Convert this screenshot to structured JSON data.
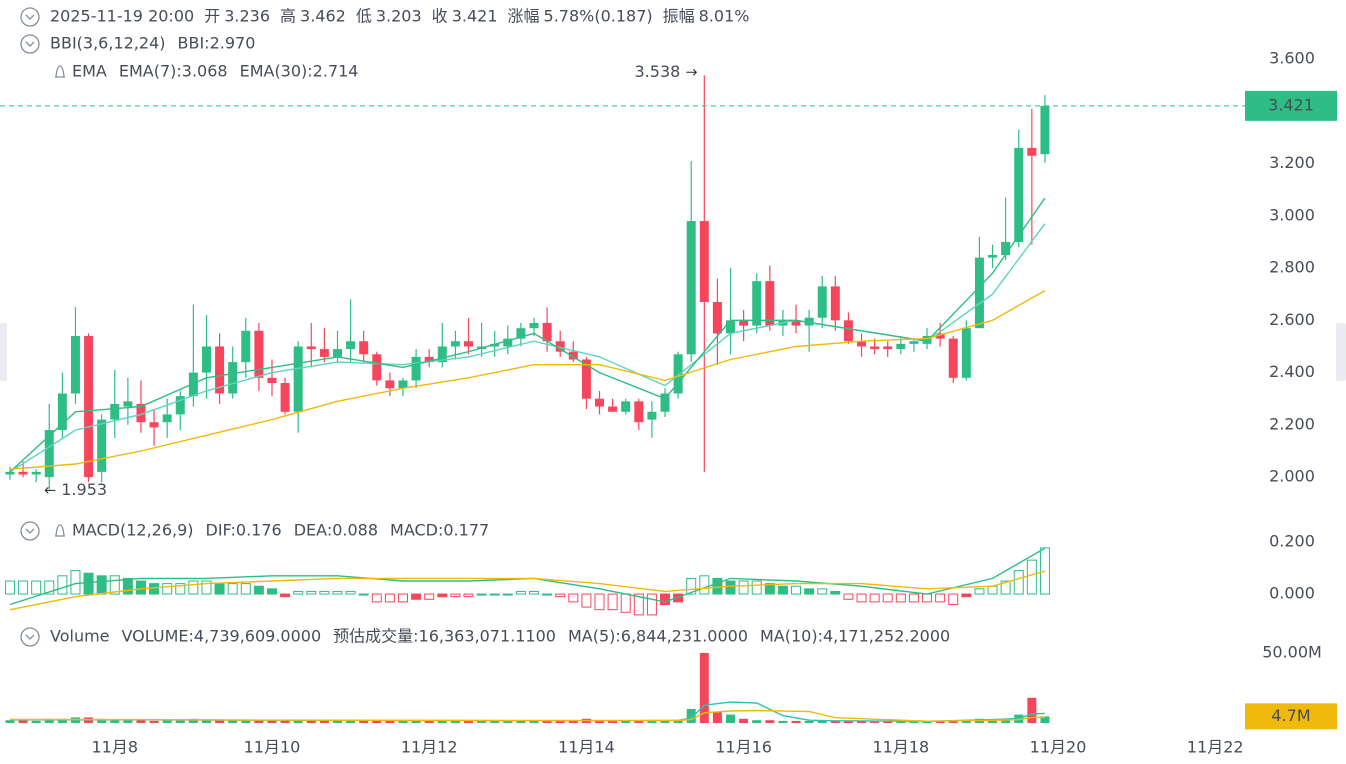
{
  "header": {
    "datetime": "2025-11-19 20:00",
    "stats": [
      {
        "label": "开",
        "value": "3.236"
      },
      {
        "label": "高",
        "value": "3.462"
      },
      {
        "label": "低",
        "value": "3.203"
      },
      {
        "label": "收",
        "value": "3.421"
      },
      {
        "label": "涨幅",
        "value": "5.78%(0.187)"
      },
      {
        "label": "振幅",
        "value": "8.01%"
      }
    ]
  },
  "chart_data": [
    {
      "type": "candlestick",
      "colors": {
        "up": "#2ebd85",
        "down": "#f6465d"
      },
      "xlim": [
        -0.76,
        94.27
      ],
      "ylim": [
        1.874,
        3.719
      ],
      "yticks": [
        {
          "value": 2,
          "label": "2.000"
        },
        {
          "value": 2.2,
          "label": "2.200"
        },
        {
          "value": 2.4,
          "label": "2.400"
        },
        {
          "value": 2.6,
          "label": "2.600"
        },
        {
          "value": 2.8,
          "label": "2.800"
        },
        {
          "value": 3,
          "label": "3.000"
        },
        {
          "value": 3.2,
          "label": "3.200"
        },
        {
          "value": 3.6,
          "label": "3.600"
        }
      ],
      "candles": [
        [
          2.01,
          2.04,
          1.99,
          2.02
        ],
        [
          2.02,
          2.06,
          2.0,
          2.01
        ],
        [
          2.01,
          2.03,
          1.98,
          2.02
        ],
        [
          2.0,
          2.28,
          1.953,
          2.18
        ],
        [
          2.18,
          2.4,
          2.15,
          2.32
        ],
        [
          2.32,
          2.65,
          2.28,
          2.54
        ],
        [
          2.54,
          2.55,
          1.98,
          2.0
        ],
        [
          2.02,
          2.24,
          1.98,
          2.22
        ],
        [
          2.22,
          2.41,
          2.15,
          2.28
        ],
        [
          2.27,
          2.38,
          2.2,
          2.29
        ],
        [
          2.28,
          2.37,
          2.17,
          2.21
        ],
        [
          2.21,
          2.26,
          2.12,
          2.19
        ],
        [
          2.21,
          2.3,
          2.15,
          2.24
        ],
        [
          2.24,
          2.33,
          2.18,
          2.31
        ],
        [
          2.31,
          2.66,
          2.27,
          2.4
        ],
        [
          2.4,
          2.62,
          2.3,
          2.5
        ],
        [
          2.5,
          2.55,
          2.28,
          2.32
        ],
        [
          2.32,
          2.5,
          2.3,
          2.44
        ],
        [
          2.44,
          2.61,
          2.38,
          2.56
        ],
        [
          2.56,
          2.59,
          2.33,
          2.38
        ],
        [
          2.38,
          2.45,
          2.31,
          2.36
        ],
        [
          2.36,
          2.38,
          2.24,
          2.25
        ],
        [
          2.25,
          2.52,
          2.17,
          2.5
        ],
        [
          2.5,
          2.59,
          2.42,
          2.49
        ],
        [
          2.49,
          2.57,
          2.44,
          2.46
        ],
        [
          2.46,
          2.56,
          2.44,
          2.49
        ],
        [
          2.49,
          2.68,
          2.44,
          2.52
        ],
        [
          2.52,
          2.56,
          2.44,
          2.47
        ],
        [
          2.47,
          2.48,
          2.35,
          2.37
        ],
        [
          2.37,
          2.4,
          2.31,
          2.34
        ],
        [
          2.34,
          2.38,
          2.31,
          2.37
        ],
        [
          2.37,
          2.49,
          2.34,
          2.46
        ],
        [
          2.46,
          2.49,
          2.42,
          2.44
        ],
        [
          2.44,
          2.59,
          2.42,
          2.5
        ],
        [
          2.5,
          2.56,
          2.45,
          2.52
        ],
        [
          2.52,
          2.61,
          2.47,
          2.5
        ],
        [
          2.49,
          2.59,
          2.46,
          2.5
        ],
        [
          2.5,
          2.56,
          2.46,
          2.51
        ],
        [
          2.5,
          2.58,
          2.47,
          2.53
        ],
        [
          2.53,
          2.59,
          2.5,
          2.57
        ],
        [
          2.57,
          2.61,
          2.54,
          2.59
        ],
        [
          2.59,
          2.65,
          2.48,
          2.52
        ],
        [
          2.52,
          2.56,
          2.46,
          2.48
        ],
        [
          2.48,
          2.52,
          2.44,
          2.45
        ],
        [
          2.45,
          2.46,
          2.26,
          2.3
        ],
        [
          2.3,
          2.33,
          2.24,
          2.27
        ],
        [
          2.27,
          2.3,
          2.25,
          2.25
        ],
        [
          2.25,
          2.3,
          2.24,
          2.29
        ],
        [
          2.29,
          2.3,
          2.18,
          2.21
        ],
        [
          2.22,
          2.29,
          2.15,
          2.25
        ],
        [
          2.25,
          2.34,
          2.23,
          2.32
        ],
        [
          2.32,
          2.48,
          2.3,
          2.47
        ],
        [
          2.47,
          3.21,
          2.44,
          2.98
        ],
        [
          2.98,
          3.538,
          2.02,
          2.67
        ],
        [
          2.67,
          2.76,
          2.43,
          2.55
        ],
        [
          2.55,
          2.8,
          2.47,
          2.6
        ],
        [
          2.6,
          2.64,
          2.52,
          2.58
        ],
        [
          2.58,
          2.78,
          2.55,
          2.75
        ],
        [
          2.75,
          2.81,
          2.56,
          2.58
        ],
        [
          2.58,
          2.64,
          2.54,
          2.6
        ],
        [
          2.6,
          2.66,
          2.55,
          2.58
        ],
        [
          2.58,
          2.64,
          2.48,
          2.61
        ],
        [
          2.61,
          2.77,
          2.57,
          2.73
        ],
        [
          2.73,
          2.77,
          2.56,
          2.6
        ],
        [
          2.6,
          2.63,
          2.51,
          2.52
        ],
        [
          2.52,
          2.55,
          2.46,
          2.5
        ],
        [
          2.5,
          2.53,
          2.47,
          2.49
        ],
        [
          2.5,
          2.52,
          2.46,
          2.49
        ],
        [
          2.49,
          2.54,
          2.47,
          2.51
        ],
        [
          2.51,
          2.53,
          2.48,
          2.52
        ],
        [
          2.51,
          2.57,
          2.49,
          2.54
        ],
        [
          2.55,
          2.59,
          2.5,
          2.53
        ],
        [
          2.53,
          2.54,
          2.36,
          2.38
        ],
        [
          2.38,
          2.6,
          2.37,
          2.57
        ],
        [
          2.57,
          2.92,
          2.57,
          2.84
        ],
        [
          2.84,
          2.89,
          2.8,
          2.85
        ],
        [
          2.85,
          3.07,
          2.83,
          2.9
        ],
        [
          2.9,
          3.33,
          2.88,
          3.26
        ],
        [
          3.26,
          3.41,
          2.89,
          3.23
        ],
        [
          3.236,
          3.462,
          3.203,
          3.421
        ]
      ],
      "lines": [
        {
          "color": "#5fd3c0",
          "x": [
            0,
            5,
            10,
            15,
            20,
            25,
            30,
            35,
            40,
            45,
            50,
            55,
            60,
            65,
            70,
            75,
            79
          ],
          "values": [
            2.02,
            2.18,
            2.24,
            2.33,
            2.4,
            2.44,
            2.43,
            2.46,
            2.52,
            2.46,
            2.35,
            2.55,
            2.6,
            2.56,
            2.52,
            2.7,
            2.97
          ]
        },
        {
          "color": "#2ebd85",
          "x": [
            0,
            5,
            10,
            15,
            20,
            25,
            30,
            35,
            40,
            45,
            50,
            55,
            60,
            65,
            70,
            75,
            79
          ],
          "values": [
            2.02,
            2.25,
            2.27,
            2.38,
            2.42,
            2.46,
            2.42,
            2.48,
            2.55,
            2.4,
            2.3,
            2.6,
            2.6,
            2.56,
            2.52,
            2.78,
            3.068
          ]
        },
        {
          "color": "#f0b90b",
          "x": [
            0,
            5,
            10,
            15,
            20,
            25,
            30,
            35,
            40,
            45,
            50,
            55,
            60,
            65,
            70,
            75,
            79
          ],
          "values": [
            2.03,
            2.05,
            2.1,
            2.16,
            2.22,
            2.29,
            2.34,
            2.38,
            2.43,
            2.43,
            2.37,
            2.45,
            2.5,
            2.52,
            2.53,
            2.6,
            2.714
          ]
        }
      ],
      "legend_rows": [
        [
          {
            "text": "BBI(3,6,12,24)",
            "color": "#707a8a"
          },
          {
            "text": "BBI:2.970",
            "color": "#2ebd85"
          }
        ],
        [
          {
            "text": "EMA",
            "color": "#707a8a"
          },
          {
            "text": "EMA(7):3.068",
            "color": "#2ebd85"
          },
          {
            "text": "EMA(30):2.714",
            "color": "#f0b90b"
          }
        ]
      ]
    },
    {
      "type": "macd",
      "colors": {
        "up": "#2ebd85",
        "down": "#f6465d"
      },
      "xlim": [
        -0.76,
        94.27
      ],
      "ylim": [
        -0.088,
        0.215
      ],
      "yticks": [
        {
          "value": 0,
          "label": "0.000"
        },
        {
          "value": 0.2,
          "label": "0.200"
        }
      ],
      "values": [
        0.05,
        0.05,
        0.05,
        0.05,
        0.07,
        0.09,
        0.08,
        0.07,
        0.07,
        0.06,
        0.05,
        0.04,
        0.04,
        0.04,
        0.05,
        0.05,
        0.04,
        0.04,
        0.04,
        0.03,
        0.02,
        -0.01,
        0.01,
        0.01,
        0.01,
        0.01,
        0.01,
        0.0,
        -0.03,
        -0.03,
        -0.03,
        -0.02,
        -0.02,
        -0.01,
        -0.01,
        -0.01,
        0.0,
        0.0,
        0.0,
        0.01,
        0.01,
        0.0,
        -0.01,
        -0.03,
        -0.05,
        -0.06,
        -0.06,
        -0.07,
        -0.08,
        -0.08,
        -0.04,
        -0.03,
        0.06,
        0.07,
        0.06,
        0.05,
        0.05,
        0.05,
        0.04,
        0.03,
        0.03,
        0.02,
        0.02,
        0.01,
        -0.02,
        -0.03,
        -0.03,
        -0.03,
        -0.03,
        -0.03,
        -0.03,
        -0.03,
        -0.04,
        -0.01,
        0.02,
        0.03,
        0.05,
        0.09,
        0.13,
        0.177
      ],
      "lines": [
        {
          "color": "#2ebd85",
          "x": [
            0,
            5,
            10,
            15,
            20,
            25,
            30,
            35,
            40,
            45,
            50,
            55,
            60,
            65,
            70,
            75,
            79
          ],
          "values": [
            -0.04,
            0.04,
            0.06,
            0.06,
            0.07,
            0.07,
            0.05,
            0.05,
            0.06,
            0.02,
            -0.03,
            0.06,
            0.05,
            0.03,
            0.0,
            0.06,
            0.176
          ]
        },
        {
          "color": "#f0b90b",
          "x": [
            0,
            5,
            10,
            15,
            20,
            25,
            30,
            35,
            40,
            45,
            50,
            55,
            60,
            65,
            70,
            75,
            79
          ],
          "values": [
            -0.06,
            -0.01,
            0.02,
            0.04,
            0.05,
            0.06,
            0.06,
            0.06,
            0.06,
            0.04,
            0.01,
            0.03,
            0.04,
            0.04,
            0.02,
            0.03,
            0.088
          ]
        }
      ],
      "legend_rows": [
        [
          {
            "text": "MACD(12,26,9)",
            "color": "#707a8a"
          },
          {
            "text": "DIF:0.176",
            "color": "#2ebd85"
          },
          {
            "text": "DEA:0.088",
            "color": "#f0b90b"
          },
          {
            "text": "MACD:0.177",
            "color": "#2ebd85"
          }
        ]
      ]
    },
    {
      "type": "volume",
      "colors": {
        "up": "#2ebd85",
        "down": "#f6465d"
      },
      "xlim": [
        -0.76,
        94.27
      ],
      "ylim": [
        0,
        52.14
      ],
      "yticks": [
        {
          "value": 50,
          "label": "50.00M"
        }
      ],
      "xticks": [
        {
          "value": 8,
          "label": "11月8"
        },
        {
          "value": 20,
          "label": "11月10"
        },
        {
          "value": 32,
          "label": "11月12"
        },
        {
          "value": 44,
          "label": "11月14"
        },
        {
          "value": 56,
          "label": "11月16"
        },
        {
          "value": 68,
          "label": "11月18"
        },
        {
          "value": 80,
          "label": "11月20"
        },
        {
          "value": 92,
          "label": "11月22"
        }
      ],
      "current_tag": {
        "value": 4.739609,
        "label": "4.7M"
      },
      "values": [
        2,
        2,
        1.5,
        3,
        3,
        4,
        4,
        3,
        2.5,
        2,
        2,
        1.5,
        2,
        2,
        3,
        2,
        2,
        2,
        2,
        2,
        2,
        2,
        2,
        2,
        2,
        1.5,
        1.5,
        2,
        2,
        1.5,
        1.5,
        1.5,
        1.5,
        2,
        2,
        2,
        1.5,
        1.5,
        1.5,
        2,
        2,
        2,
        1.5,
        2,
        3,
        2,
        1.5,
        1.5,
        2,
        1.5,
        2,
        2,
        10,
        50,
        8,
        6,
        3,
        2,
        2,
        1.5,
        1.5,
        1.5,
        2,
        1.5,
        1.5,
        1.5,
        1,
        1,
        1,
        1,
        1,
        1,
        2,
        2,
        3,
        2,
        3,
        6,
        18,
        4.739609
      ],
      "lines": [
        {
          "color": "#2bc4b0",
          "x": [
            0,
            10,
            20,
            30,
            40,
            50,
            51,
            52,
            53,
            55,
            57,
            59,
            61,
            63,
            70,
            75,
            77,
            78,
            79
          ],
          "values": [
            2.2,
            2.3,
            2,
            1.8,
            1.7,
            1.8,
            1.9,
            3.5,
            12.7,
            14.9,
            14.3,
            5.3,
            2,
            1.6,
            1.2,
            2.4,
            3.2,
            6.4,
            6.844
          ]
        },
        {
          "color": "#f0b90b",
          "x": [
            0,
            10,
            20,
            30,
            40,
            50,
            51,
            52,
            53,
            55,
            57,
            59,
            61,
            63,
            70,
            75,
            77,
            78,
            79
          ],
          "values": [
            2.5,
            2.4,
            2.1,
            1.9,
            1.7,
            1.8,
            1.8,
            2.6,
            7.3,
            8.6,
            8.9,
            8.5,
            8.2,
            3.8,
            1.3,
            1.9,
            2.4,
            3.9,
            4.171
          ]
        }
      ],
      "legend_rows": [
        [
          {
            "text": "Volume",
            "color": "#707a8a"
          },
          {
            "text": "VOLUME:4,739,609.0000",
            "color": "#707a8a"
          },
          {
            "text": "预估成交量:16,363,071.1100",
            "color": "#1e2329"
          },
          {
            "text": "MA(5):6,844,231.0000",
            "color": "#2bc4b0"
          },
          {
            "text": "MA(10):4,171,252.2000",
            "color": "#f0b90b"
          }
        ]
      ]
    }
  ]
}
